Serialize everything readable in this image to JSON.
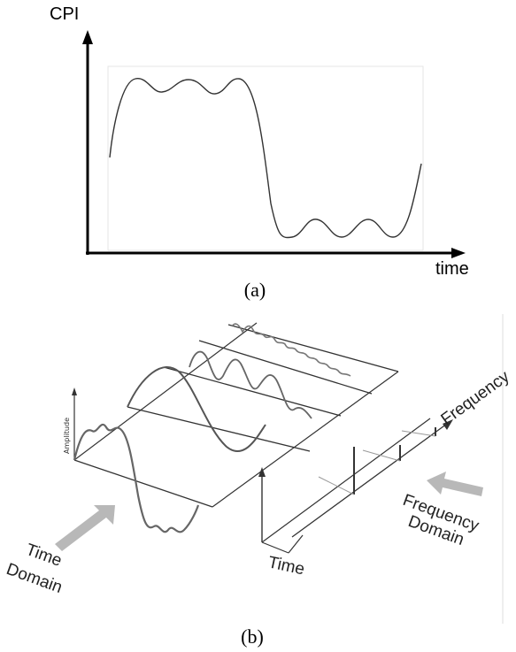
{
  "figure_a": {
    "y_axis_label": "CPI",
    "x_axis_label": "time",
    "caption": "(a)"
  },
  "figure_b": {
    "amplitude_label": "Amplitude",
    "time_label": "Time",
    "frequency_label": "Frequency",
    "time_domain_line1": "Time",
    "time_domain_line2": "Domain",
    "freq_domain_line1": "Frequency",
    "freq_domain_line2": "Domain",
    "caption": "(b)"
  }
}
